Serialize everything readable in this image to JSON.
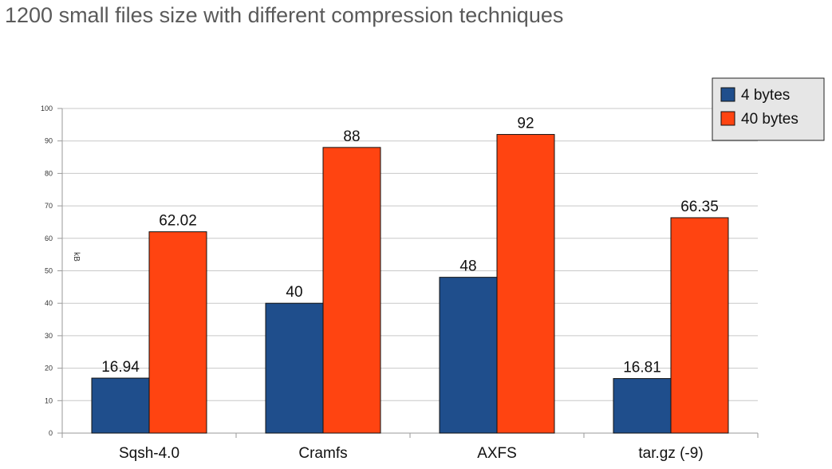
{
  "title": "1200 small files size with different compression techniques",
  "colors": {
    "series_1": "#1f4e8c",
    "series_2": "#ff4411",
    "grid": "#c8c8c8",
    "axis": "#9a9a9a"
  },
  "chart_data": {
    "type": "bar",
    "title": "",
    "xlabel": "",
    "ylabel": "kB",
    "categories": [
      "Sqsh-4.0",
      "Cramfs",
      "AXFS",
      "tar.gz (-9)"
    ],
    "series": [
      {
        "name": "4 bytes",
        "values": [
          16.94,
          40,
          48,
          16.81
        ],
        "labels": [
          "16.94",
          "40",
          "48",
          "16.81"
        ]
      },
      {
        "name": "40 bytes",
        "values": [
          62.02,
          88,
          92,
          66.35
        ],
        "labels": [
          "62.02",
          "88",
          "92",
          "66.35"
        ]
      }
    ],
    "ylim": [
      0,
      100
    ],
    "yticks": [
      0,
      10,
      20,
      30,
      40,
      50,
      60,
      70,
      80,
      90,
      100
    ],
    "grid": true,
    "legend_position": "top-right"
  }
}
